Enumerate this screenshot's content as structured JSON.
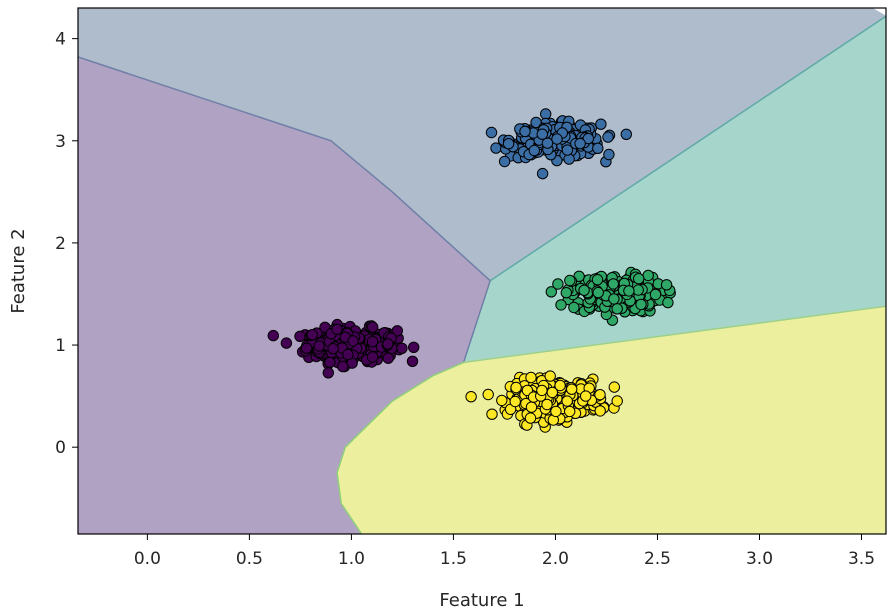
{
  "chart_data": {
    "type": "scatter",
    "title": "",
    "xlabel": "Feature 1",
    "ylabel": "Feature 2",
    "xlim": [
      -0.34,
      3.62
    ],
    "ylim": [
      -0.85,
      4.3
    ],
    "x_ticks": [
      "0.0",
      "0.5",
      "1.0",
      "1.5",
      "2.0",
      "2.5",
      "3.0",
      "3.5"
    ],
    "y_ticks": [
      "0",
      "1",
      "2",
      "3",
      "4"
    ],
    "grid": false,
    "legend": "none",
    "background": "decision regions",
    "regions": [
      {
        "color": "#b0a2c3",
        "vertices": [
          [
            -0.34,
            3.82
          ],
          [
            0.9,
            3.0
          ],
          [
            1.2,
            2.5
          ],
          [
            1.68,
            1.63
          ],
          [
            1.55,
            0.83
          ],
          [
            1.4,
            0.7
          ],
          [
            1.2,
            0.45
          ],
          [
            0.97,
            0.0
          ],
          [
            0.93,
            -0.25
          ],
          [
            0.95,
            -0.55
          ],
          [
            1.05,
            -0.85
          ],
          [
            -0.34,
            -0.85
          ]
        ]
      },
      {
        "color": "#aebccc",
        "vertices": [
          [
            -0.34,
            4.3
          ],
          [
            3.55,
            4.3
          ],
          [
            3.62,
            4.22
          ],
          [
            1.68,
            1.63
          ],
          [
            1.2,
            2.5
          ],
          [
            0.9,
            3.0
          ],
          [
            -0.34,
            3.82
          ]
        ]
      },
      {
        "color": "#a6d6cb",
        "vertices": [
          [
            1.68,
            1.63
          ],
          [
            3.62,
            4.22
          ],
          [
            3.62,
            1.38
          ],
          [
            1.55,
            0.83
          ]
        ]
      },
      {
        "color": "#ecf09e",
        "vertices": [
          [
            1.55,
            0.83
          ],
          [
            3.62,
            1.38
          ],
          [
            3.62,
            -0.85
          ],
          [
            1.05,
            -0.85
          ],
          [
            0.95,
            -0.55
          ],
          [
            0.93,
            -0.25
          ],
          [
            0.97,
            0.0
          ],
          [
            1.2,
            0.45
          ],
          [
            1.4,
            0.7
          ]
        ]
      }
    ],
    "series": [
      {
        "color": "#440154",
        "center": [
          1.0,
          1.0
        ],
        "spread": [
          0.11,
          0.08
        ],
        "count": 300
      },
      {
        "color": "#3b6ea5",
        "center": [
          2.0,
          3.0
        ],
        "spread": [
          0.11,
          0.08
        ],
        "count": 300
      },
      {
        "color": "#2fa766",
        "center": [
          2.3,
          1.5
        ],
        "spread": [
          0.11,
          0.09
        ],
        "count": 300
      },
      {
        "color": "#fde725",
        "center": [
          2.0,
          0.48
        ],
        "spread": [
          0.11,
          0.09
        ],
        "count": 300
      }
    ],
    "point_edge_color": "#000000"
  }
}
